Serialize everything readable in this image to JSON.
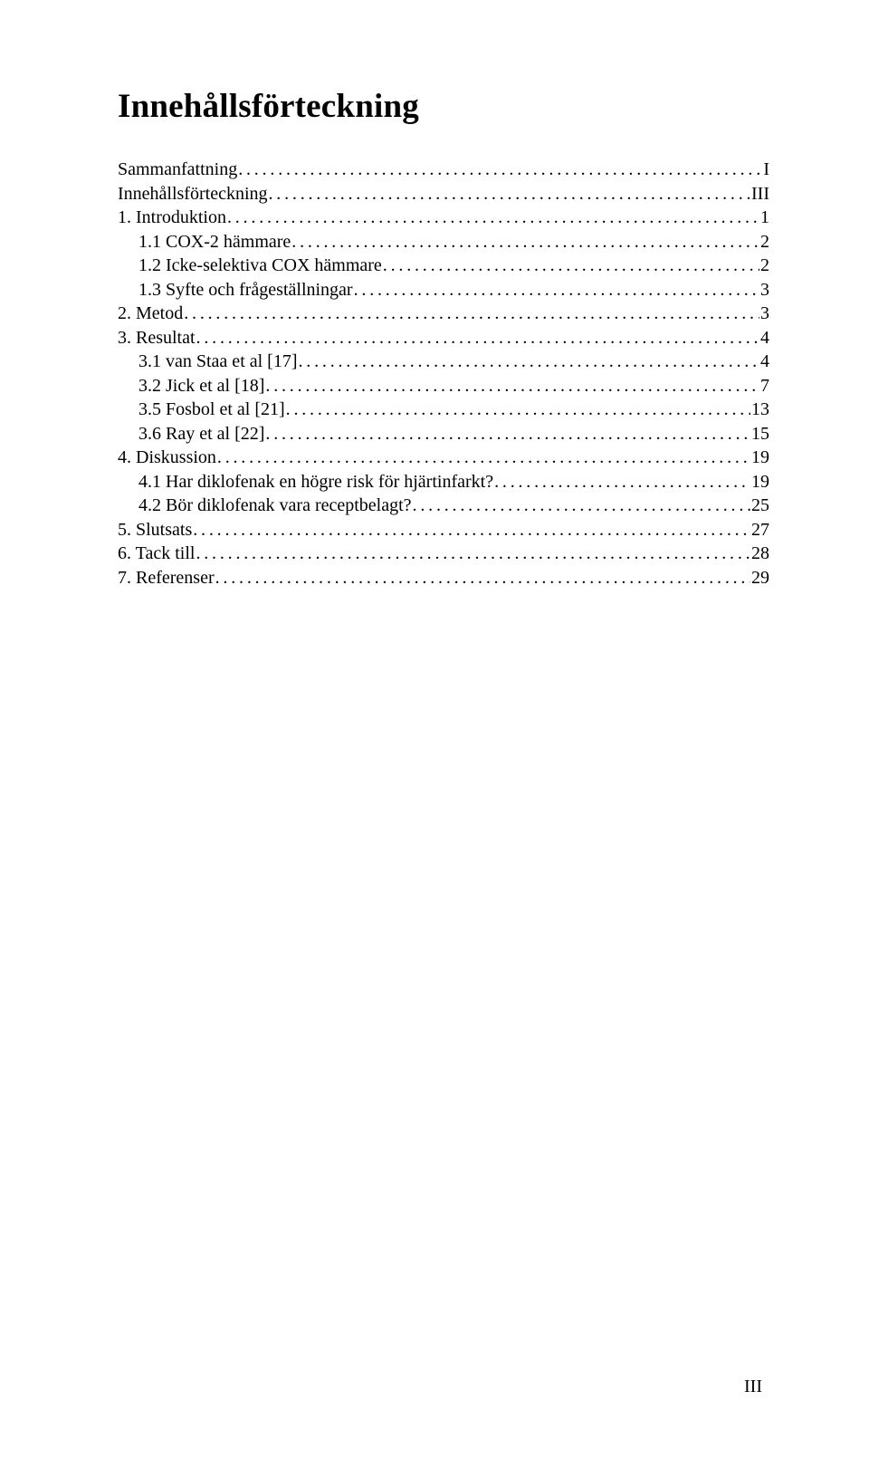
{
  "title": "Innehållsförteckning",
  "page_number_label": "III",
  "toc": [
    {
      "label": "Sammanfattning",
      "page": "I",
      "indent": 0
    },
    {
      "label": "Innehållsförteckning",
      "page": "III",
      "indent": 0
    },
    {
      "label": "1. Introduktion",
      "page": "1",
      "indent": 0
    },
    {
      "label": "1.1 COX-2 hämmare",
      "page": "2",
      "indent": 1
    },
    {
      "label": "1.2 Icke-selektiva COX hämmare",
      "page": "2",
      "indent": 1
    },
    {
      "label": "1.3 Syfte och frågeställningar",
      "page": "3",
      "indent": 1
    },
    {
      "label": "2. Metod",
      "page": "3",
      "indent": 0
    },
    {
      "label": "3. Resultat",
      "page": "4",
      "indent": 0
    },
    {
      "label": "3.1 van Staa et al [17]",
      "page": "4",
      "indent": 1
    },
    {
      "label": "3.2 Jick et al [18]",
      "page": "7",
      "indent": 1
    },
    {
      "label": "3.5 Fosbol et al [21]",
      "page": "13",
      "indent": 1
    },
    {
      "label": "3.6 Ray et al [22]",
      "page": "15",
      "indent": 1
    },
    {
      "label": "4. Diskussion",
      "page": "19",
      "indent": 0
    },
    {
      "label": "4.1  Har diklofenak en högre risk för hjärtinfarkt?",
      "page": "19",
      "indent": 1
    },
    {
      "label": "4.2 Bör diklofenak vara receptbelagt?",
      "page": "25",
      "indent": 1
    },
    {
      "label": "5. Slutsats",
      "page": "27",
      "indent": 0
    },
    {
      "label": "6. Tack till",
      "page": "28",
      "indent": 0
    },
    {
      "label": "7. Referenser",
      "page": "29",
      "indent": 0
    }
  ]
}
